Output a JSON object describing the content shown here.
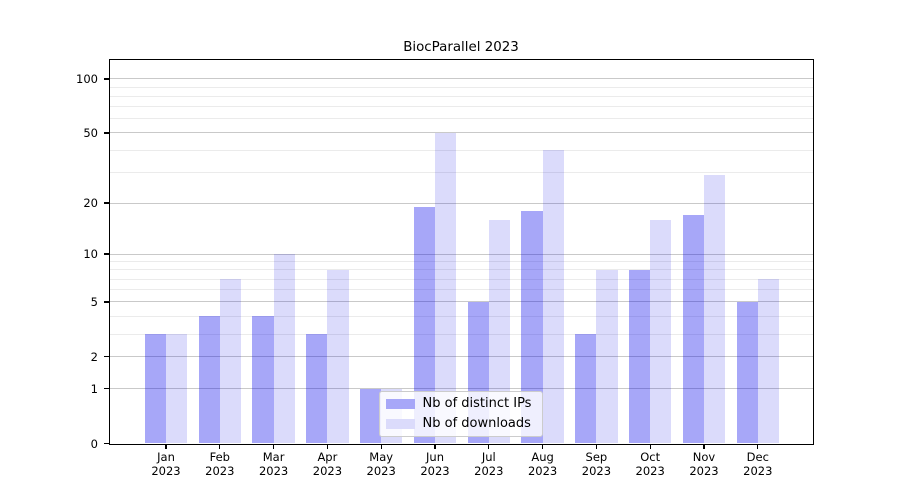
{
  "title": "BiocParallel 2023",
  "chart_data": {
    "type": "bar",
    "categories": [
      {
        "month": "Jan",
        "year": "2023"
      },
      {
        "month": "Feb",
        "year": "2023"
      },
      {
        "month": "Mar",
        "year": "2023"
      },
      {
        "month": "Apr",
        "year": "2023"
      },
      {
        "month": "May",
        "year": "2023"
      },
      {
        "month": "Jun",
        "year": "2023"
      },
      {
        "month": "Jul",
        "year": "2023"
      },
      {
        "month": "Aug",
        "year": "2023"
      },
      {
        "month": "Sep",
        "year": "2023"
      },
      {
        "month": "Oct",
        "year": "2023"
      },
      {
        "month": "Nov",
        "year": "2023"
      },
      {
        "month": "Dec",
        "year": "2023"
      }
    ],
    "series": [
      {
        "name": "Nb of distinct IPs",
        "values": [
          3,
          4,
          4,
          3,
          1,
          19,
          5,
          18,
          3,
          8,
          17,
          5
        ],
        "fill": "rgba(0,0,235,0.345)",
        "swatch": "#a7a7f8"
      },
      {
        "name": "Nb of downloads",
        "values": [
          3,
          7,
          10,
          8,
          1,
          50,
          16,
          40,
          8,
          16,
          29,
          7
        ],
        "fill": "rgba(0,0,225,0.142)",
        "swatch": "#dbdbfb"
      }
    ],
    "yscale": "log1p",
    "yticks": [
      0,
      1,
      2,
      5,
      10,
      20,
      50,
      100
    ],
    "yticks_minor": [
      3,
      4,
      6,
      7,
      8,
      9,
      30,
      40,
      60,
      70,
      80,
      90
    ],
    "ylim": [
      0,
      130
    ],
    "grid": true,
    "legend_position": "inside-bottom-center"
  },
  "colors": {
    "grid_major": "#c9c9c9",
    "grid_minor": "#ebebeb",
    "spine": "#000000",
    "text": "#000000",
    "background": "#ffffff"
  }
}
